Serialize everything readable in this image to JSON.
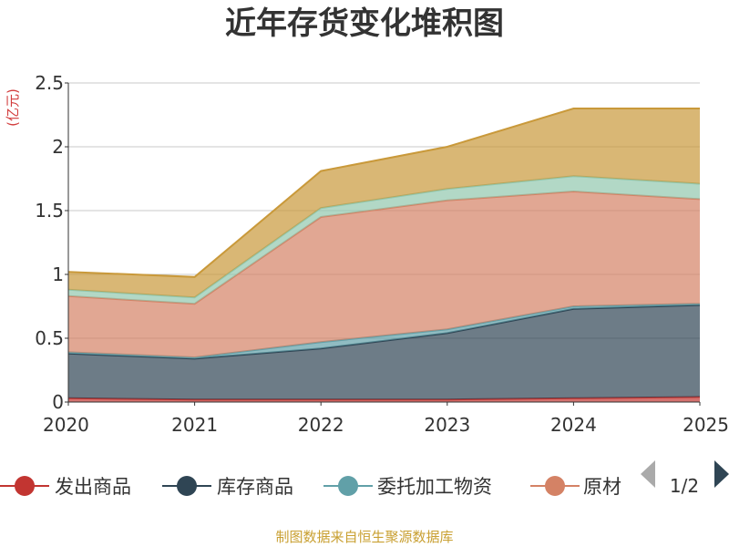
{
  "chart_data": {
    "type": "area",
    "title": "近年存货变化堆积图",
    "ylabel": "(亿元)",
    "x": [
      "2020",
      "2021",
      "2022",
      "2023",
      "2024",
      "2025"
    ],
    "ylim": [
      0,
      2.5
    ],
    "yticks": [
      "0",
      "0.5",
      "1",
      "1.5",
      "2",
      "2.5"
    ],
    "grid": true,
    "stacked": true,
    "series": [
      {
        "name": "发出商品",
        "color": "#c23531",
        "values": [
          0.03,
          0.02,
          0.02,
          0.02,
          0.03,
          0.04
        ]
      },
      {
        "name": "库存商品",
        "color": "#2f4554",
        "values": [
          0.35,
          0.32,
          0.4,
          0.52,
          0.7,
          0.72
        ]
      },
      {
        "name": "委托加工物资",
        "color": "#61a0a8",
        "values": [
          0.01,
          0.01,
          0.05,
          0.03,
          0.02,
          0.01
        ]
      },
      {
        "name": "原材料",
        "color": "#d48265",
        "values": [
          0.44,
          0.42,
          0.98,
          1.01,
          0.9,
          0.82
        ]
      },
      {
        "name": "",
        "color": "#91c7ae",
        "values": [
          0.05,
          0.05,
          0.07,
          0.09,
          0.12,
          0.12
        ]
      },
      {
        "name": "",
        "color": "#c9993a",
        "values": [
          0.14,
          0.16,
          0.29,
          0.33,
          0.53,
          0.59
        ]
      }
    ],
    "legend": {
      "position": "bottom",
      "visible_items": [
        "发出商品",
        "库存商品",
        "委托加工物资",
        "原材"
      ],
      "page": "1/2"
    },
    "source": "制图数据来自恒生聚源数据库"
  }
}
